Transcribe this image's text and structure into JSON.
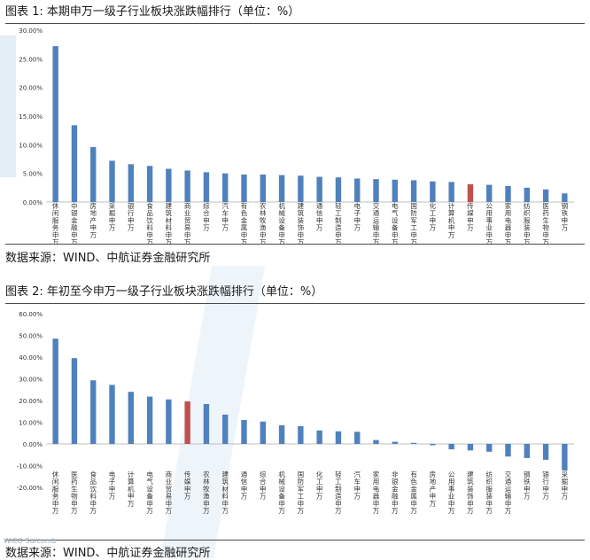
{
  "figure1": {
    "title": "图表 1: 本期申万一级子行业板块涨跌幅排行（单位：%）",
    "source": "数据来源：WIND、中航证券金融研究所"
  },
  "figure2": {
    "title": "图表 2: 年初至今申万一级子行业板块涨跌幅排行（单位：%）",
    "source": "数据来源：WIND、中航证券金融研究所"
  },
  "watermark": "WiCO·Surcomb",
  "colors": {
    "bar": "#4f81bd",
    "highlight": "#c0504d",
    "axis": "#bfbfbf",
    "tick": "#333333"
  },
  "chart_data": [
    {
      "type": "bar",
      "title": "本期申万一级子行业板块涨跌幅排行（单位：%）",
      "ylim": [
        0,
        30
      ],
      "yticks": [
        "0.00%",
        "5.00%",
        "10.00%",
        "15.00%",
        "20.00%",
        "25.00%",
        "30.00%"
      ],
      "highlight_index": 22,
      "categories": [
        "休闲服务申万",
        "中银金融申万",
        "房地产申万",
        "采掘申万",
        "银行申万",
        "食品饮料申万",
        "建筑材料申万",
        "商业贸易申万",
        "综合申万",
        "汽车申万",
        "有色金属申万",
        "农林牧渔申万",
        "机械设备申万",
        "建筑装饰申万",
        "通信申万",
        "轻工制造申万",
        "电子申万",
        "交通运输申万",
        "电气设备申万",
        "国防军工申万",
        "化工申万",
        "计算机申万",
        "传媒申万",
        "公用事业申万",
        "家用电器申万",
        "纺织服装申万",
        "医药生物申万",
        "钢铁申万"
      ],
      "values": [
        27.2,
        13.4,
        9.6,
        7.2,
        6.6,
        6.3,
        5.8,
        5.5,
        5.2,
        5.0,
        4.8,
        4.8,
        4.7,
        4.6,
        4.4,
        4.3,
        4.1,
        4.0,
        3.9,
        3.8,
        3.6,
        3.5,
        3.1,
        3.0,
        2.8,
        2.5,
        2.2,
        1.5
      ]
    },
    {
      "type": "bar",
      "title": "年初至今申万一级子行业板块涨跌幅排行（单位：%）",
      "ylim": [
        -20,
        60
      ],
      "yticks": [
        "-20.00%",
        "-10.00%",
        "0.00%",
        "10.00%",
        "20.00%",
        "30.00%",
        "40.00%",
        "50.00%",
        "60.00%"
      ],
      "highlight_index": 7,
      "categories": [
        "休闲服务申万",
        "医药生物申万",
        "食品饮料申万",
        "电子申万",
        "计算机申万",
        "电气设备申万",
        "商业贸易申万",
        "传媒申万",
        "农林牧渔申万",
        "建筑材料申万",
        "通信申万",
        "综合申万",
        "机械设备申万",
        "国防军工申万",
        "化工申万",
        "轻工制造申万",
        "汽车申万",
        "家用电器申万",
        "非银金融申万",
        "有色金属申万",
        "房地产申万",
        "公用事业申万",
        "建筑装饰申万",
        "纺织服装申万",
        "交通运输申万",
        "钢铁申万",
        "银行申万",
        "采掘申万"
      ],
      "values": [
        48.5,
        39.5,
        29.3,
        27.2,
        24.0,
        21.8,
        20.5,
        19.6,
        18.4,
        13.5,
        11.0,
        10.3,
        8.6,
        8.2,
        6.2,
        5.8,
        5.6,
        1.8,
        1.0,
        0.5,
        -0.6,
        -2.5,
        -3.0,
        -3.6,
        -5.8,
        -6.5,
        -7.3,
        -12.2
      ]
    }
  ]
}
